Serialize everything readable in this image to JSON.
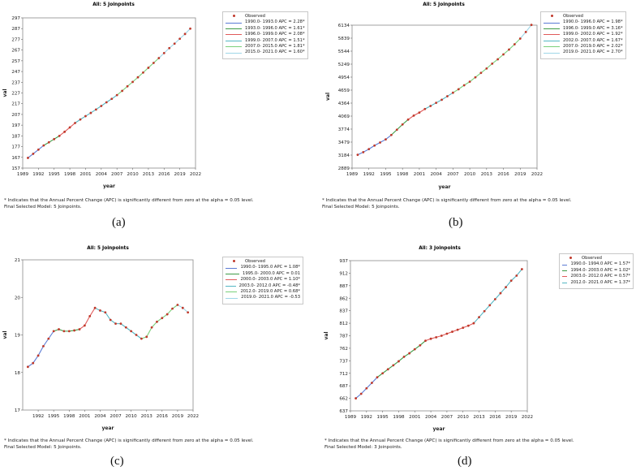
{
  "colors": {
    "observed": "#c0392b",
    "segments": [
      "#5b7bd5",
      "#3e9b47",
      "#e05a5a",
      "#55b7c4",
      "#7bd07b",
      "#9fd6e8"
    ]
  },
  "footnote": {
    "line1": "* Indicates that the Annual Percent Change (APC) is significantly different from zero at the alpha = 0.05 level."
  },
  "chart_data": [
    {
      "id": "a",
      "type": "line",
      "caption": "(a)",
      "title": "All: 5 Joinpoints",
      "xlabel": "year",
      "ylabel": "val",
      "xlim": [
        1989,
        2022
      ],
      "ylim": [
        157,
        297
      ],
      "xticks": [
        1989,
        1992,
        1995,
        1998,
        2001,
        2004,
        2007,
        2010,
        2013,
        2016,
        2019,
        2022
      ],
      "yticks": [
        157,
        167,
        177,
        187,
        197,
        207,
        217,
        227,
        237,
        247,
        257,
        267,
        277,
        287,
        297
      ],
      "legend_observed": "Observed",
      "final_model": "Final Selected Model: 5 Joinpoints.",
      "years": [
        1990,
        1991,
        1992,
        1993,
        1994,
        1995,
        1996,
        1997,
        1998,
        1999,
        2000,
        2001,
        2002,
        2003,
        2004,
        2005,
        2006,
        2007,
        2008,
        2009,
        2010,
        2011,
        2012,
        2013,
        2014,
        2015,
        2016,
        2017,
        2018,
        2019,
        2020,
        2021
      ],
      "observed": [
        166.5,
        170.3,
        174.2,
        178.1,
        181.0,
        184.0,
        187.0,
        190.8,
        194.9,
        199.0,
        202.3,
        205.4,
        208.4,
        211.6,
        214.9,
        218.3,
        221.5,
        225.0,
        229.0,
        233.2,
        237.3,
        241.6,
        246.0,
        250.5,
        255.0,
        259.5,
        264.2,
        268.8,
        273.0,
        277.5,
        282.0,
        287.0
      ],
      "segments": [
        {
          "label": "1990.0- 1993.0 APC =  2.28*",
          "start": 1990,
          "end": 1993
        },
        {
          "label": "1993.0- 1996.0 APC =  1.61*",
          "start": 1993,
          "end": 1996
        },
        {
          "label": "1996.0- 1999.0 APC =  2.08*",
          "start": 1996,
          "end": 1999
        },
        {
          "label": "1999.0- 2007.0 APC =  1.51*",
          "start": 1999,
          "end": 2007
        },
        {
          "label": "2007.0- 2015.0 APC =  1.81*",
          "start": 2007,
          "end": 2015
        },
        {
          "label": "2015.0- 2021.0 APC =  1.60*",
          "start": 2015,
          "end": 2021
        }
      ]
    },
    {
      "id": "b",
      "type": "line",
      "caption": "(b)",
      "title": "All: 5 Joinpoints",
      "xlabel": "year",
      "ylabel": "val",
      "xlim": [
        1989,
        2022
      ],
      "ylim": [
        2889,
        6134
      ],
      "xticks": [
        1989,
        1992,
        1995,
        1998,
        2001,
        2004,
        2007,
        2010,
        2013,
        2016,
        2019,
        2022
      ],
      "yticks": [
        2889,
        3184,
        3479,
        3774,
        4069,
        4364,
        4659,
        4954,
        5249,
        5544,
        5839,
        6134
      ],
      "legend_observed": "Observed",
      "final_model": "Final Selected Model: 5 Joinpoints.",
      "years": [
        1990,
        1991,
        1992,
        1993,
        1994,
        1995,
        1996,
        1997,
        1998,
        1999,
        2000,
        2001,
        2002,
        2003,
        2004,
        2005,
        2006,
        2007,
        2008,
        2009,
        2010,
        2011,
        2012,
        2013,
        2014,
        2015,
        2016,
        2017,
        2018,
        2019,
        2020,
        2021
      ],
      "observed": [
        3190,
        3250,
        3320,
        3400,
        3470,
        3540,
        3640,
        3760,
        3880,
        3990,
        4080,
        4150,
        4230,
        4300,
        4370,
        4440,
        4520,
        4600,
        4680,
        4770,
        4850,
        4950,
        5050,
        5150,
        5260,
        5360,
        5470,
        5580,
        5700,
        5830,
        5980,
        6140
      ],
      "segments": [
        {
          "label": "1990.0- 1996.0 APC =  1.98*",
          "start": 1990,
          "end": 1996
        },
        {
          "label": "1996.0- 1999.0 APC =  3.16*",
          "start": 1996,
          "end": 1999
        },
        {
          "label": "1999.0- 2002.0 APC =  1.92*",
          "start": 1999,
          "end": 2002
        },
        {
          "label": "2002.0- 2007.0 APC =  1.67*",
          "start": 2002,
          "end": 2007
        },
        {
          "label": "2007.0- 2019.0 APC =  2.02*",
          "start": 2007,
          "end": 2019
        },
        {
          "label": "2019.0- 2021.0 APC =  2.70*",
          "start": 2019,
          "end": 2021
        }
      ]
    },
    {
      "id": "c",
      "type": "line",
      "caption": "(c)",
      "title": "All: 5 Joinpoints",
      "xlabel": "year",
      "ylabel": "val",
      "xlim": [
        1989,
        2022
      ],
      "ylim": [
        17,
        21
      ],
      "xticks": [
        1992,
        1995,
        1998,
        2001,
        2004,
        2007,
        2010,
        2013,
        2016,
        2019,
        2022
      ],
      "yticks": [
        17,
        18,
        19,
        20,
        21
      ],
      "legend_observed": "Observed",
      "final_model": "Final Selected Model: 5 Joinpoints.",
      "years": [
        1990,
        1991,
        1992,
        1993,
        1994,
        1995,
        1996,
        1997,
        1998,
        1999,
        2000,
        2001,
        2002,
        2003,
        2004,
        2005,
        2006,
        2007,
        2008,
        2009,
        2010,
        2011,
        2012,
        2013,
        2014,
        2015,
        2016,
        2017,
        2018,
        2019,
        2020,
        2021
      ],
      "observed": [
        18.15,
        18.25,
        18.45,
        18.7,
        18.9,
        19.1,
        19.15,
        19.1,
        19.1,
        19.12,
        19.15,
        19.25,
        19.5,
        19.72,
        19.65,
        19.6,
        19.4,
        19.3,
        19.3,
        19.2,
        19.1,
        19.0,
        18.9,
        18.95,
        19.2,
        19.35,
        19.45,
        19.55,
        19.7,
        19.8,
        19.72,
        19.6
      ],
      "segments": [
        {
          "label": "1990.0- 1995.0 APC =  1.08*",
          "start": 1990,
          "end": 1995
        },
        {
          "label": "1995.0- 2000.0 APC =  0.01",
          "start": 1995,
          "end": 2000
        },
        {
          "label": "2000.0- 2003.0 APC =  1.10*",
          "start": 2000,
          "end": 2003
        },
        {
          "label": "2003.0- 2012.0 APC = -0.48*",
          "start": 2003,
          "end": 2012
        },
        {
          "label": "2012.0- 2019.0 APC =  0.68*",
          "start": 2012,
          "end": 2019
        },
        {
          "label": "2019.0- 2021.0 APC = -0.53",
          "start": 2019,
          "end": 2021
        }
      ]
    },
    {
      "id": "d",
      "type": "line",
      "caption": "(d)",
      "title": "All: 3 Joinpoints",
      "xlabel": "year",
      "ylabel": "val",
      "xlim": [
        1989,
        2022
      ],
      "ylim": [
        637,
        937
      ],
      "xticks": [
        1989,
        1992,
        1995,
        1998,
        2001,
        2004,
        2007,
        2010,
        2013,
        2016,
        2019,
        2022
      ],
      "yticks": [
        637,
        662,
        687,
        712,
        737,
        762,
        787,
        812,
        837,
        862,
        887,
        912,
        937
      ],
      "legend_observed": "Observed",
      "final_model": "Final Selected Model: 3 Joinpoints.",
      "years": [
        1990,
        1991,
        1992,
        1993,
        1994,
        1995,
        1996,
        1997,
        1998,
        1999,
        2000,
        2001,
        2002,
        2003,
        2004,
        2005,
        2006,
        2007,
        2008,
        2009,
        2010,
        2011,
        2012,
        2013,
        2014,
        2015,
        2016,
        2017,
        2018,
        2019,
        2020,
        2021
      ],
      "observed": [
        662,
        671,
        682,
        693,
        704,
        712,
        720,
        728,
        736,
        745,
        752,
        760,
        768,
        777,
        781,
        784,
        787,
        791,
        795,
        799,
        803,
        807,
        812,
        824,
        836,
        848,
        860,
        872,
        884,
        897,
        907,
        920
      ],
      "segments": [
        {
          "label": "1990.0- 1994.0 APC =  1.57*",
          "start": 1990,
          "end": 1994
        },
        {
          "label": "1994.0- 2003.0 APC =  1.02*",
          "start": 1994,
          "end": 2003
        },
        {
          "label": "2003.0- 2012.0 APC =  0.57*",
          "start": 2003,
          "end": 2012
        },
        {
          "label": "2012.0- 2021.0 APC =  1.37*",
          "start": 2012,
          "end": 2021
        }
      ]
    }
  ]
}
